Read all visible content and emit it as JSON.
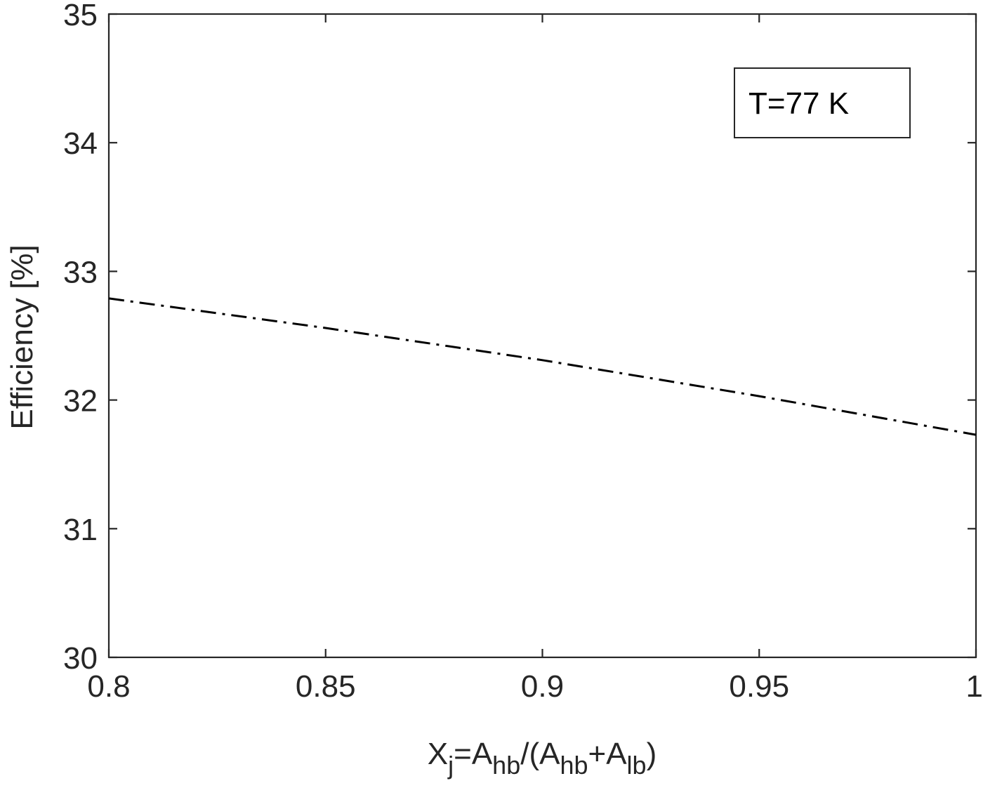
{
  "chart_data": {
    "type": "line",
    "title": "",
    "xlabel": {
      "parts": [
        {
          "text": "X",
          "style": "normal"
        },
        {
          "text": "j",
          "style": "sub"
        },
        {
          "text": "=A",
          "style": "normal"
        },
        {
          "text": "hb",
          "style": "sub"
        },
        {
          "text": "/(A",
          "style": "normal"
        },
        {
          "text": "hb",
          "style": "sub"
        },
        {
          "text": "+A",
          "style": "normal"
        },
        {
          "text": "lb",
          "style": "sub"
        },
        {
          "text": ")",
          "style": "normal"
        }
      ]
    },
    "ylabel": "Efficiency [%]",
    "xlim": [
      0.8,
      1.0
    ],
    "ylim": [
      30,
      35
    ],
    "x_ticks": [
      0.8,
      0.85,
      0.9,
      0.95,
      1.0
    ],
    "x_tick_labels": [
      "0.8",
      "0.85",
      "0.9",
      "0.95",
      "1"
    ],
    "y_ticks": [
      30,
      31,
      32,
      33,
      34,
      35
    ],
    "y_tick_labels": [
      "30",
      "31",
      "32",
      "33",
      "34",
      "35"
    ],
    "grid": false,
    "legend": {
      "placement": "top-right",
      "entries": [
        "T=77 K"
      ]
    },
    "series": [
      {
        "line_style": "dash-dot",
        "color": "#000000",
        "x": [
          0.8,
          0.85,
          0.9,
          0.95,
          1.0
        ],
        "y": [
          32.79,
          32.56,
          32.31,
          32.03,
          31.73
        ]
      }
    ]
  }
}
